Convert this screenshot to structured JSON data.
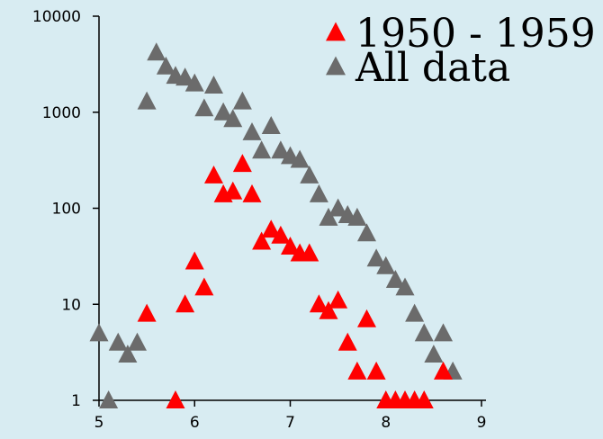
{
  "chart_data": {
    "type": "scatter",
    "title": "",
    "xlabel": "",
    "ylabel": "",
    "xlim": [
      5,
      9
    ],
    "ylim": [
      1,
      10000
    ],
    "y_scale": "log",
    "grid": false,
    "legend_position": "top-right",
    "x_ticks": [
      "5",
      "6",
      "7",
      "8",
      "9"
    ],
    "y_ticks": [
      "1",
      "10",
      "100",
      "1000",
      "10000"
    ],
    "marker": "triangle",
    "colors": {
      "background": "#d8ecf2",
      "series_1950": "#ff0000",
      "series_all": "#6b6b6b",
      "axis": "#000000"
    },
    "series": [
      {
        "name": "1950 - 1959",
        "color": "#ff0000",
        "points": [
          [
            5.5,
            8
          ],
          [
            5.8,
            1
          ],
          [
            5.9,
            10
          ],
          [
            6.0,
            28
          ],
          [
            6.1,
            15
          ],
          [
            6.2,
            220
          ],
          [
            6.3,
            140
          ],
          [
            6.4,
            150
          ],
          [
            6.5,
            290
          ],
          [
            6.6,
            140
          ],
          [
            6.7,
            45
          ],
          [
            6.8,
            60
          ],
          [
            6.9,
            52
          ],
          [
            7.0,
            40
          ],
          [
            7.1,
            34
          ],
          [
            7.2,
            34
          ],
          [
            7.3,
            10
          ],
          [
            7.4,
            8.5
          ],
          [
            7.5,
            11
          ],
          [
            7.6,
            4
          ],
          [
            7.7,
            2
          ],
          [
            7.8,
            7
          ],
          [
            7.9,
            2
          ],
          [
            8.0,
            1
          ],
          [
            8.1,
            1
          ],
          [
            8.2,
            1
          ],
          [
            8.3,
            1
          ],
          [
            8.4,
            1
          ],
          [
            8.6,
            2
          ]
        ]
      },
      {
        "name": "All data",
        "color": "#6b6b6b",
        "points": [
          [
            5.0,
            5
          ],
          [
            5.1,
            1
          ],
          [
            5.2,
            4
          ],
          [
            5.3,
            3
          ],
          [
            5.4,
            4
          ],
          [
            5.5,
            1300
          ],
          [
            5.6,
            4200
          ],
          [
            5.7,
            3000
          ],
          [
            5.8,
            2400
          ],
          [
            5.9,
            2300
          ],
          [
            6.0,
            2000
          ],
          [
            6.1,
            1100
          ],
          [
            6.2,
            1900
          ],
          [
            6.3,
            1000
          ],
          [
            6.4,
            850
          ],
          [
            6.5,
            1300
          ],
          [
            6.6,
            620
          ],
          [
            6.7,
            400
          ],
          [
            6.8,
            720
          ],
          [
            6.9,
            400
          ],
          [
            7.0,
            350
          ],
          [
            7.1,
            320
          ],
          [
            7.2,
            220
          ],
          [
            7.3,
            140
          ],
          [
            7.4,
            80
          ],
          [
            7.5,
            100
          ],
          [
            7.6,
            85
          ],
          [
            7.7,
            80
          ],
          [
            7.8,
            55
          ],
          [
            7.9,
            30
          ],
          [
            8.0,
            25
          ],
          [
            8.1,
            18
          ],
          [
            8.2,
            15
          ],
          [
            8.3,
            8
          ],
          [
            8.4,
            5
          ],
          [
            8.5,
            3
          ],
          [
            8.6,
            5
          ],
          [
            8.7,
            2
          ]
        ]
      }
    ]
  }
}
